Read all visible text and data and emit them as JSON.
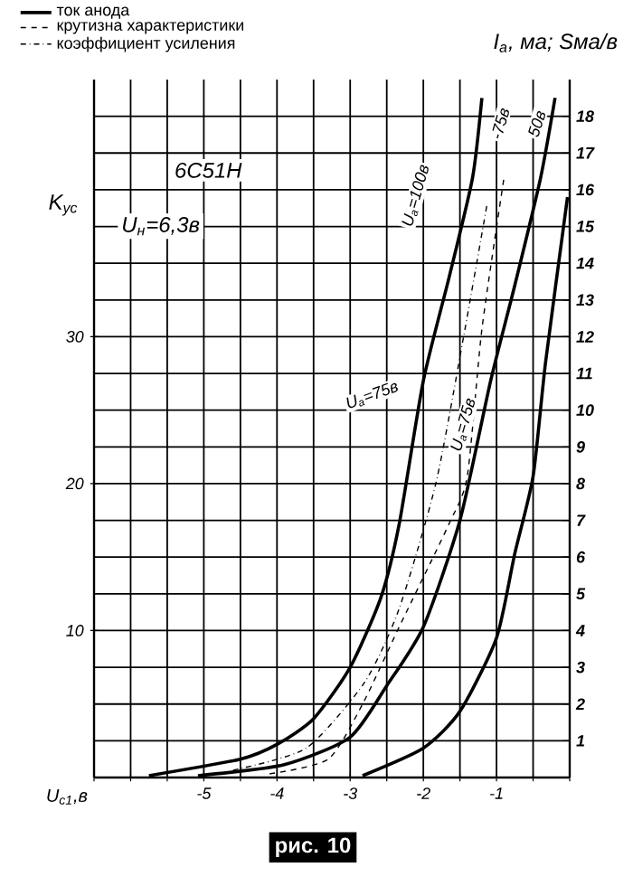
{
  "chart_data": {
    "type": "line",
    "annotations": [
      "6С51Н",
      "U$_{н}$=6,3в",
      "рис. 10",
      {
        "text": "U$_{a}$=100в",
        "x": -2.1,
        "y": 39.6
      },
      {
        "text": "U$_{a}$=75в",
        "x": -2.7,
        "y": 26
      },
      {
        "text": "U$_{a}$=75в",
        "x": -1.45,
        "y": 24
      },
      {
        "text": "-75в",
        "x": -0.95,
        "y": 44.5
      },
      {
        "text": "50в",
        "x": -0.45,
        "y": 44.5
      }
    ],
    "xlabel": "U$_{c1}$,в",
    "ylabel": "K$_{ус}$",
    "y2label": "I$_{a}$, ма; Sма/в",
    "series": [
      {
        "name": "ток анода",
        "color": "#000000",
        "axis": "y2",
        "line_style": "solid",
        "x": [
          -5.75,
          -4.5,
          -4.0,
          -3.5,
          -3.0,
          -2.58,
          -2.33,
          -2.0,
          -1.65,
          -1.33,
          -1.2
        ],
        "values": [
          0.05,
          0.5,
          0.9,
          1.6,
          3.0,
          4.9,
          6.9,
          10.8,
          13.6,
          16.3,
          18.5
        ]
      },
      {
        "color": "#000000",
        "axis": "y2",
        "line_style": "solid",
        "x": [
          -5.08,
          -3.9,
          -3.0,
          -2.5,
          -2.0,
          -1.5,
          -1.08,
          -0.75,
          -0.4,
          -0.2
        ],
        "values": [
          0.05,
          0.35,
          1.1,
          2.5,
          4.1,
          7.0,
          10.8,
          13.4,
          16.3,
          18.5
        ]
      },
      {
        "color": "#000000",
        "axis": "y2",
        "line_style": "solid",
        "x": [
          -2.83,
          -2.0,
          -1.5,
          -1.0,
          -0.75,
          -0.5,
          -0.33,
          -0.03
        ],
        "values": [
          0.05,
          0.8,
          1.8,
          3.8,
          6.1,
          8.2,
          11.3,
          15.8
        ]
      },
      {
        "name": "крутизна характеристики",
        "color": "#000000",
        "axis": "y2",
        "line_style": "dashed",
        "x": [
          -4.1,
          -3.3,
          -2.83,
          -2.33,
          -1.65,
          -1.4,
          -1.2,
          -0.9
        ],
        "values": [
          0.1,
          0.5,
          2.0,
          4.1,
          6.9,
          8.2,
          12.2,
          16.3
        ]
      },
      {
        "name": "коэффициент усиления",
        "color": "#000000",
        "line_style": "dashdot",
        "x": [
          -4.6,
          -3.6,
          -2.8,
          -2.33,
          -1.83,
          -1.45,
          -1.13
        ],
        "values": [
          0.5,
          2,
          6.5,
          11.5,
          20,
          30,
          39
        ]
      }
    ],
    "xlim": [
      -6.5,
      0
    ],
    "xticks": [
      {
        "value": -6.5,
        "label": null
      },
      {
        "value": -6,
        "label": null
      },
      {
        "value": -5.5,
        "label": null
      },
      -5,
      {
        "value": -4.5,
        "label": null
      },
      -4,
      {
        "value": -3.5,
        "label": null
      },
      -3,
      {
        "value": -2.5,
        "label": null
      },
      -2,
      {
        "value": -1.5,
        "label": null
      },
      -1,
      {
        "value": -0.5,
        "label": null
      },
      {
        "value": 0,
        "label": null
      }
    ],
    "ylim": [
      0,
      47.5
    ],
    "yticks": [
      10,
      20,
      30
    ],
    "y2lim": [
      0,
      19
    ],
    "y2ticks": [
      1,
      2,
      3,
      4,
      5,
      6,
      7,
      8,
      9,
      10,
      11,
      12,
      13,
      14,
      15,
      16,
      17,
      18
    ],
    "grid": true,
    "legend": "top left",
    "marker": "none"
  }
}
